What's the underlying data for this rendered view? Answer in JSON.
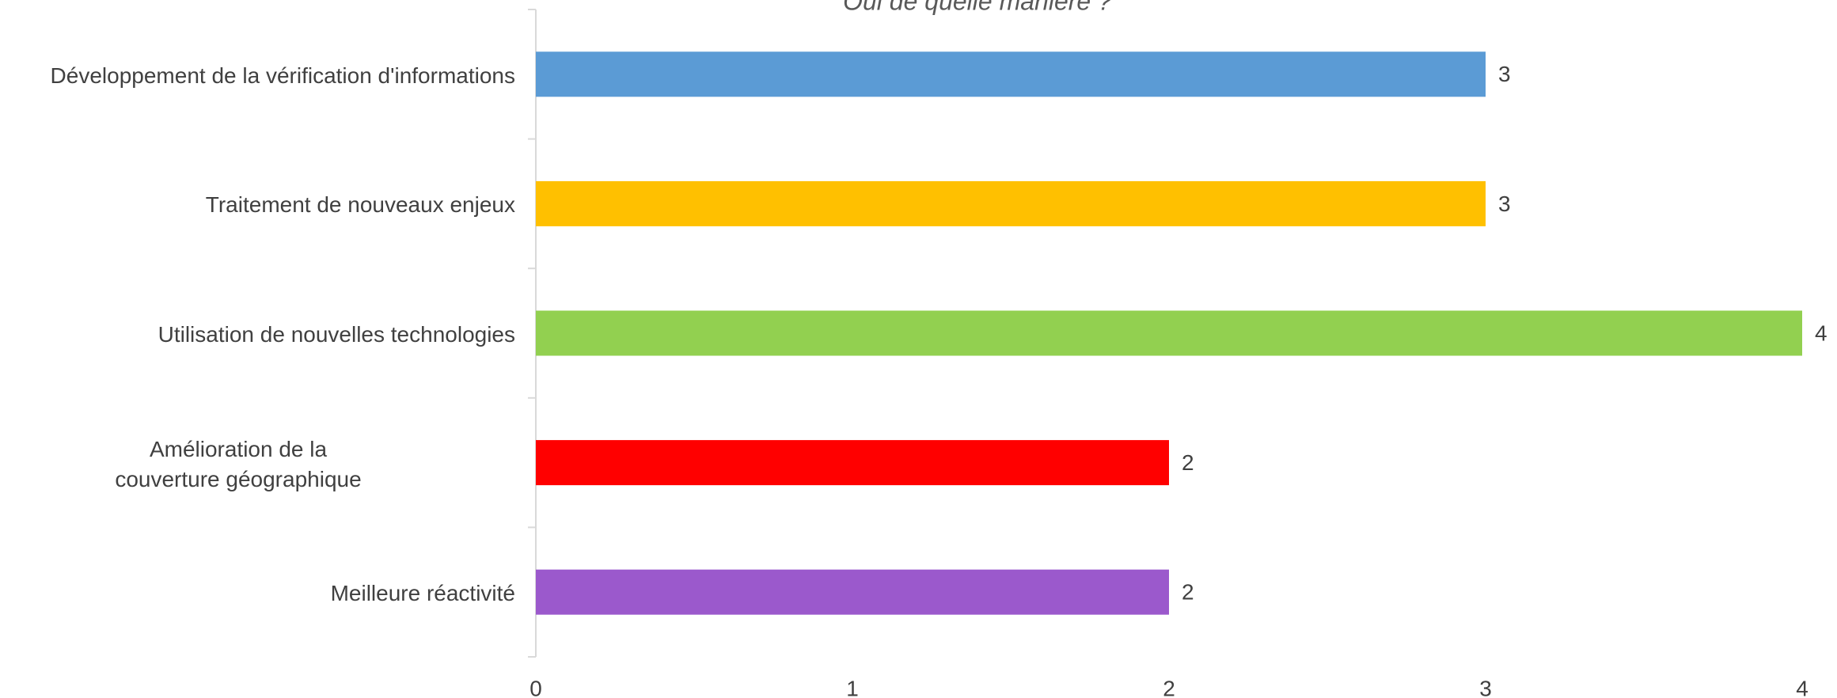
{
  "chart_data": {
    "type": "bar",
    "orientation": "horizontal",
    "title": "Oui de quelle manière ?",
    "categories": [
      "Développement de la vérification d'informations",
      "Traitement de nouveaux enjeux",
      "Utilisation de nouvelles technologies",
      "Amélioration de la\ncouverture géographique",
      "Meilleure réactivité"
    ],
    "values": [
      3,
      3,
      4,
      2,
      2
    ],
    "colors": [
      "#5b9bd5",
      "#ffc000",
      "#92d050",
      "#ff0000",
      "#9b59cc"
    ],
    "xlim": [
      0,
      4
    ],
    "xticks": [
      0,
      1,
      2,
      3,
      4
    ],
    "grid": false
  }
}
